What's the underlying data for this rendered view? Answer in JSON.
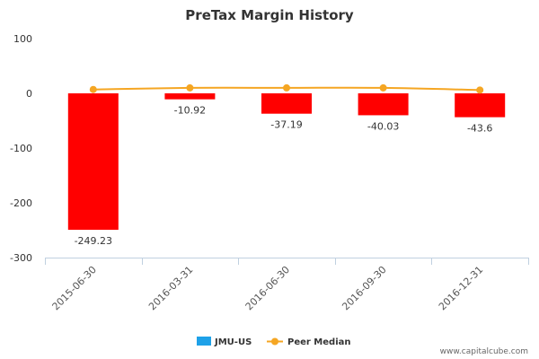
{
  "chart_data": {
    "type": "bar",
    "title": "PreTax Margin History",
    "categories": [
      "2015-06-30",
      "2016-03-31",
      "2016-06-30",
      "2016-09-30",
      "2016-12-31"
    ],
    "ylim": [
      -300,
      100
    ],
    "yticks": [
      100,
      0,
      -100,
      -200,
      -300
    ],
    "grid": false,
    "legend_position": "bottom",
    "series": [
      {
        "name": "JMU-US",
        "kind": "bar",
        "values": [
          -249.23,
          -10.92,
          -37.19,
          -40.03,
          -43.6
        ],
        "labels": [
          "-249.23",
          "-10.92",
          "-37.19",
          "-40.03",
          "-43.6"
        ],
        "bar_color": "#ff0000",
        "legend_color": "#1ea1e8"
      },
      {
        "name": "Peer Median",
        "kind": "line",
        "values": [
          7,
          10,
          10,
          10,
          6
        ],
        "color": "#f5a623"
      }
    ],
    "credit": "www.capitalcube.com"
  }
}
